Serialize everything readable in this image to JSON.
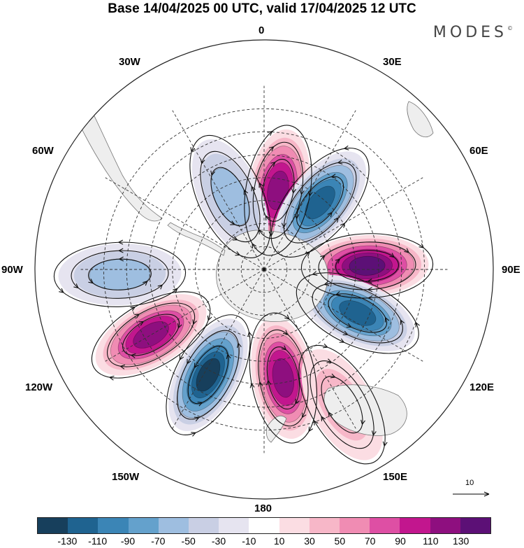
{
  "title": "Base 14/04/2025 00 UTC, valid 17/04/2025 12 UTC",
  "brand": "MODES",
  "brand_mark": "©",
  "longitude_labels": {
    "lon_0": "0",
    "lon_30e": "30E",
    "lon_60e": "60E",
    "lon_90e": "90E",
    "lon_120e": "120E",
    "lon_150e": "150E",
    "lon_180": "180",
    "lon_150w": "150W",
    "lon_120w": "120W",
    "lon_90w": "90W",
    "lon_60w": "60W",
    "lon_30w": "30W"
  },
  "vector_scale_label": "10",
  "colorbar": {
    "colors": [
      "#173f5c",
      "#1f6390",
      "#3b85b6",
      "#64a1cc",
      "#9ebee0",
      "#c9cfe4",
      "#e6e4f0",
      "#ffffff",
      "#fbdde3",
      "#f7b7c8",
      "#f08cb3",
      "#de4fa4",
      "#c2168e",
      "#8e0f7f",
      "#5c1076"
    ],
    "tick_labels": [
      "-130",
      "-110",
      "-90",
      "-70",
      "-50",
      "-30",
      "-10",
      "10",
      "30",
      "50",
      "70",
      "90",
      "110",
      "130"
    ]
  },
  "anomaly_centers": [
    {
      "lon": 10,
      "lat": -55,
      "value": 110
    },
    {
      "lon": 40,
      "lat": -52,
      "value": -110
    },
    {
      "lon": 88,
      "lat": -45,
      "value": 130
    },
    {
      "lon": 115,
      "lat": -45,
      "value": -110
    },
    {
      "lon": 170,
      "lat": -42,
      "value": 110
    },
    {
      "lon": -152,
      "lat": -38,
      "value": -130
    },
    {
      "lon": -120,
      "lat": -33,
      "value": 110
    },
    {
      "lon": -92,
      "lat": -27,
      "value": -50
    },
    {
      "lon": -25,
      "lat": -55,
      "value": -50
    },
    {
      "lon": 150,
      "lat": -22,
      "value": 30
    }
  ]
}
